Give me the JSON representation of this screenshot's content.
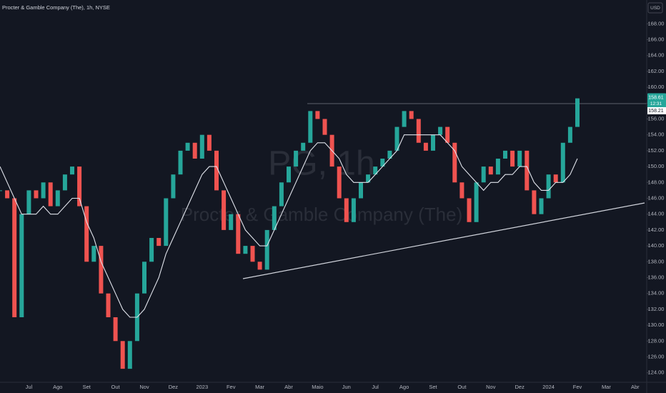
{
  "chart_data": {
    "type": "candle-line",
    "title": "Procter & Gamble Company (The), 1h, NYSE",
    "watermark_symbol": "PG, 1h",
    "watermark_name": "Procter & Gamble Company (The)",
    "currency": "USD",
    "last_price": 158.61,
    "countdown": "12:31",
    "prev_price": 158.21,
    "categories": [
      null,
      null,
      null,
      null,
      "Jul",
      null,
      null,
      null,
      "Ago",
      null,
      null,
      null,
      "Set",
      null,
      null,
      null,
      "Out",
      null,
      null,
      null,
      "Nov",
      null,
      null,
      null,
      "Dez",
      null,
      null,
      null,
      "2023",
      null,
      null,
      null,
      "Fev",
      null,
      null,
      null,
      "Mar",
      null,
      null,
      null,
      "Abr",
      null,
      null,
      null,
      "Maio",
      null,
      null,
      null,
      "Jun",
      null,
      null,
      null,
      "Jul",
      null,
      null,
      null,
      "Ago",
      null,
      null,
      null,
      "Set",
      null,
      null,
      null,
      "Out",
      null,
      null,
      null,
      "Nov",
      null,
      null,
      null,
      "Dez",
      null,
      null,
      null,
      "2024",
      null,
      null,
      null,
      "Fev",
      null,
      null,
      null,
      "Mar",
      null,
      null,
      null,
      "Abr"
    ],
    "values": [
      147,
      146,
      131,
      144,
      147,
      146,
      148,
      145,
      147,
      149,
      150,
      145,
      138,
      140,
      134,
      131,
      128,
      124.5,
      128,
      134,
      138,
      141,
      140,
      146,
      149,
      152,
      153,
      151,
      154,
      152,
      147,
      142,
      144,
      139,
      140,
      138,
      137,
      142,
      145,
      148,
      150,
      152,
      153,
      157,
      156,
      154,
      150,
      146,
      143,
      146,
      148,
      149,
      150,
      151,
      152,
      155,
      157,
      156,
      153,
      152,
      154,
      155,
      153,
      148,
      146,
      143,
      148,
      150,
      149,
      151,
      152,
      150,
      152,
      147,
      144,
      146,
      149,
      148,
      153,
      155,
      158.6,
      null,
      null,
      null,
      null,
      null,
      null,
      null,
      null
    ],
    "ma_values": [
      150,
      148,
      146,
      144,
      144,
      144,
      145,
      144,
      144,
      145,
      146,
      146,
      143,
      141,
      138,
      136,
      134,
      132,
      131,
      131,
      132,
      134,
      136,
      139,
      141,
      143,
      145,
      147,
      149,
      150,
      150,
      148,
      146,
      144,
      142,
      141,
      140,
      140,
      142,
      144,
      146,
      148,
      150,
      152,
      153,
      153,
      152,
      151,
      149,
      148,
      148,
      148,
      149,
      150,
      151,
      152,
      154,
      154,
      154,
      154,
      154,
      154,
      153,
      152,
      150,
      149,
      148,
      147,
      148,
      148,
      149,
      149,
      150,
      150,
      148,
      147,
      147,
      148,
      148,
      149,
      151,
      null,
      null,
      null,
      null,
      null,
      null,
      null,
      null
    ],
    "up_color": "#26a69a",
    "down_color": "#ef5350",
    "ma_color": "#e0e3eb",
    "ylim": [
      122.8,
      171
    ],
    "yticks": [
      {
        "value": 124,
        "label": "124.00"
      },
      {
        "value": 126,
        "label": "126.00"
      },
      {
        "value": 128,
        "label": "128.00"
      },
      {
        "value": 130,
        "label": "130.00"
      },
      {
        "value": 132,
        "label": "132.00"
      },
      {
        "value": 134,
        "label": "134.00"
      },
      {
        "value": 136,
        "label": "136.00"
      },
      {
        "value": 138,
        "label": "138.00"
      },
      {
        "value": 140,
        "label": "140.00"
      },
      {
        "value": 142,
        "label": "142.00"
      },
      {
        "value": 144,
        "label": "144.00"
      },
      {
        "value": 146,
        "label": "146.00"
      },
      {
        "value": 148,
        "label": "148.00"
      },
      {
        "value": 150,
        "label": "150.00"
      },
      {
        "value": 152,
        "label": "152.00"
      },
      {
        "value": 154,
        "label": "154.00"
      },
      {
        "value": 156,
        "label": "156.00"
      },
      {
        "value": 158,
        "label": "158.00"
      },
      {
        "value": 160,
        "label": "160.00"
      },
      {
        "value": 162,
        "label": "162.00"
      },
      {
        "value": 164,
        "label": "164.00"
      },
      {
        "value": 166,
        "label": "166.00"
      },
      {
        "value": 168,
        "label": "168.00"
      }
    ]
  }
}
